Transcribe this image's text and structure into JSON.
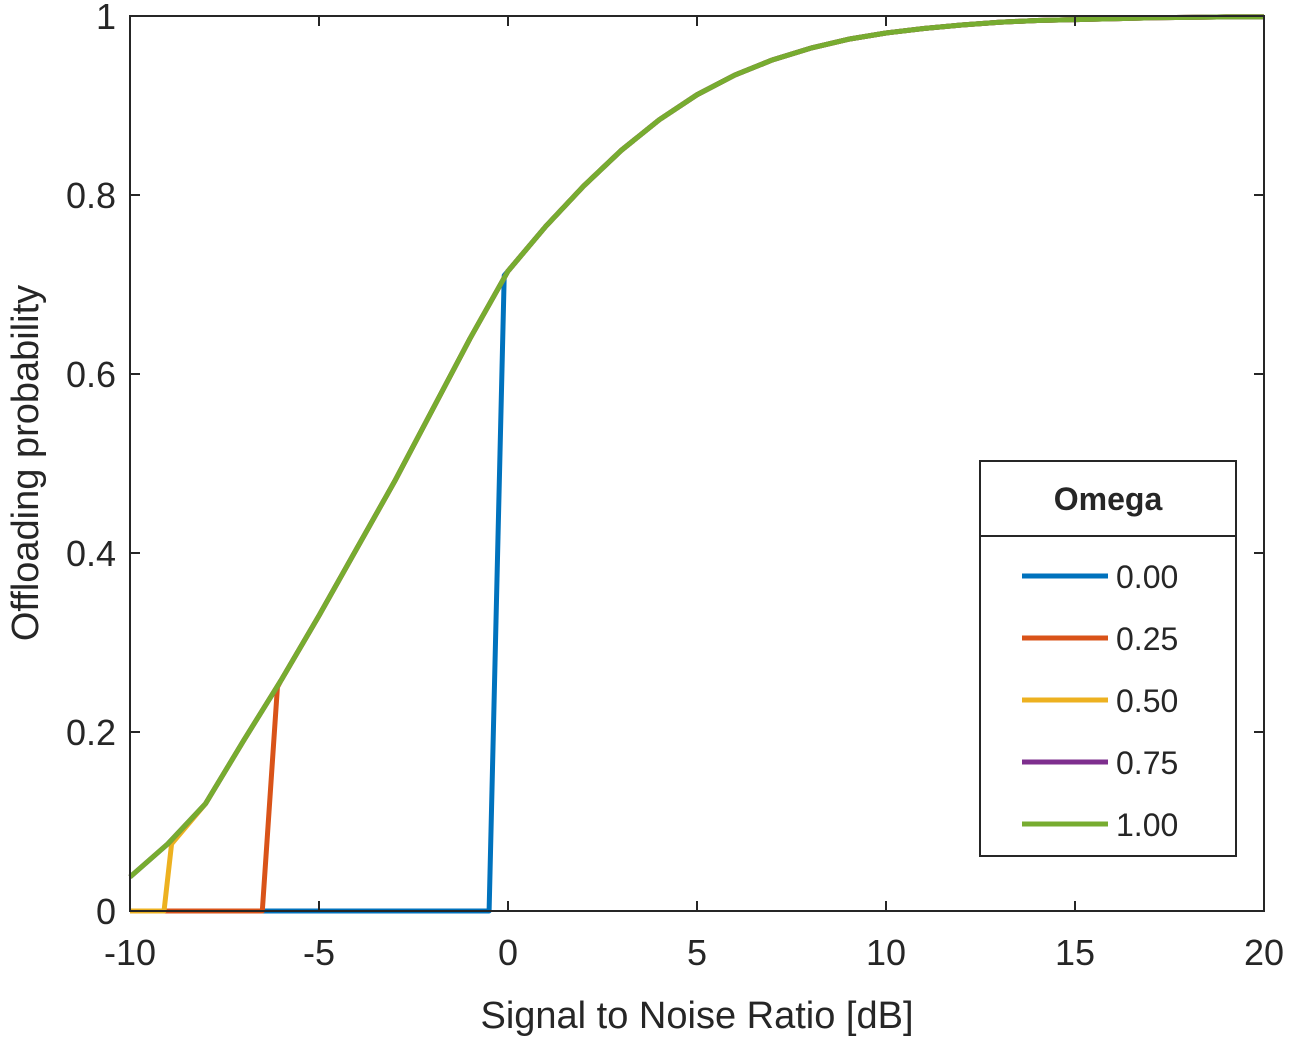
{
  "chart_data": {
    "type": "line",
    "title": "",
    "xlabel": "Signal to Noise Ratio [dB]",
    "ylabel": "Offloading probability",
    "xlim": [
      -10,
      20
    ],
    "ylim": [
      0,
      1
    ],
    "xticks": [
      -10,
      -5,
      0,
      5,
      10,
      15,
      20
    ],
    "yticks": [
      0,
      0.2,
      0.4,
      0.6,
      0.8,
      1
    ],
    "xtick_labels": [
      "-10",
      "-5",
      "0",
      "5",
      "10",
      "15",
      "20"
    ],
    "ytick_labels": [
      "0",
      "0.2",
      "0.4",
      "0.6",
      "0.8",
      "1"
    ],
    "grid": false,
    "legend": {
      "title": "Omega",
      "location": "right",
      "entries": [
        "0.00",
        "0.25",
        "0.50",
        "0.75",
        "1.00"
      ]
    },
    "series": [
      {
        "name": "0.00",
        "color": "#0072BD",
        "points": [
          [
            -10,
            0
          ],
          [
            -0.5,
            0
          ],
          [
            -0.1,
            0.71
          ],
          [
            0,
            0.715
          ],
          [
            1,
            0.765
          ],
          [
            2,
            0.81
          ],
          [
            3,
            0.85
          ],
          [
            4,
            0.884
          ],
          [
            5,
            0.912
          ],
          [
            6,
            0.934
          ],
          [
            7,
            0.951
          ],
          [
            8,
            0.964
          ],
          [
            9,
            0.974
          ],
          [
            10,
            0.981
          ],
          [
            11,
            0.986
          ],
          [
            12,
            0.99
          ],
          [
            13,
            0.993
          ],
          [
            14,
            0.995
          ],
          [
            15,
            0.996
          ],
          [
            16,
            0.997
          ],
          [
            17,
            0.998
          ],
          [
            18,
            0.9985
          ],
          [
            19,
            0.999
          ],
          [
            20,
            0.999
          ]
        ]
      },
      {
        "name": "0.25",
        "color": "#D95319",
        "points": [
          [
            -10,
            0
          ],
          [
            -6.5,
            0
          ],
          [
            -6.1,
            0.25
          ],
          [
            -6,
            0.258
          ],
          [
            -5,
            0.33
          ],
          [
            -4,
            0.405
          ],
          [
            -3,
            0.48
          ],
          [
            -2,
            0.56
          ],
          [
            -1,
            0.64
          ],
          [
            0,
            0.715
          ],
          [
            1,
            0.765
          ],
          [
            2,
            0.81
          ],
          [
            3,
            0.85
          ],
          [
            4,
            0.884
          ],
          [
            5,
            0.912
          ],
          [
            6,
            0.934
          ],
          [
            7,
            0.951
          ],
          [
            8,
            0.964
          ],
          [
            9,
            0.974
          ],
          [
            10,
            0.981
          ],
          [
            11,
            0.986
          ],
          [
            12,
            0.99
          ],
          [
            13,
            0.993
          ],
          [
            14,
            0.995
          ],
          [
            15,
            0.996
          ],
          [
            16,
            0.997
          ],
          [
            17,
            0.998
          ],
          [
            18,
            0.9985
          ],
          [
            19,
            0.999
          ],
          [
            20,
            0.999
          ]
        ]
      },
      {
        "name": "0.50",
        "color": "#EDB120",
        "points": [
          [
            -10,
            0
          ],
          [
            -9.1,
            0
          ],
          [
            -8.9,
            0.075
          ],
          [
            -8,
            0.12
          ],
          [
            -7,
            0.19
          ],
          [
            -6,
            0.258
          ],
          [
            -5,
            0.33
          ],
          [
            -4,
            0.405
          ],
          [
            -3,
            0.48
          ],
          [
            -2,
            0.56
          ],
          [
            -1,
            0.64
          ],
          [
            0,
            0.715
          ],
          [
            1,
            0.765
          ],
          [
            2,
            0.81
          ],
          [
            3,
            0.85
          ],
          [
            4,
            0.884
          ],
          [
            5,
            0.912
          ],
          [
            6,
            0.934
          ],
          [
            7,
            0.951
          ],
          [
            8,
            0.964
          ],
          [
            9,
            0.974
          ],
          [
            10,
            0.981
          ],
          [
            11,
            0.986
          ],
          [
            12,
            0.99
          ],
          [
            13,
            0.993
          ],
          [
            14,
            0.995
          ],
          [
            15,
            0.996
          ],
          [
            16,
            0.997
          ],
          [
            17,
            0.998
          ],
          [
            18,
            0.9985
          ],
          [
            19,
            0.999
          ],
          [
            20,
            0.999
          ]
        ]
      },
      {
        "name": "0.75",
        "color": "#7E2F8E",
        "points": [
          [
            -10,
            0.038
          ],
          [
            -9,
            0.075
          ],
          [
            -8,
            0.12
          ],
          [
            -7,
            0.19
          ],
          [
            -6,
            0.258
          ],
          [
            -5,
            0.33
          ],
          [
            -4,
            0.405
          ],
          [
            -3,
            0.48
          ],
          [
            -2,
            0.56
          ],
          [
            -1,
            0.64
          ],
          [
            0,
            0.715
          ],
          [
            1,
            0.765
          ],
          [
            2,
            0.81
          ],
          [
            3,
            0.85
          ],
          [
            4,
            0.884
          ],
          [
            5,
            0.912
          ],
          [
            6,
            0.934
          ],
          [
            7,
            0.951
          ],
          [
            8,
            0.964
          ],
          [
            9,
            0.974
          ],
          [
            10,
            0.981
          ],
          [
            11,
            0.986
          ],
          [
            12,
            0.99
          ],
          [
            13,
            0.993
          ],
          [
            14,
            0.995
          ],
          [
            15,
            0.996
          ],
          [
            16,
            0.997
          ],
          [
            17,
            0.998
          ],
          [
            18,
            0.9985
          ],
          [
            19,
            0.999
          ],
          [
            20,
            0.999
          ]
        ]
      },
      {
        "name": "1.00",
        "color": "#77AC30",
        "points": [
          [
            -10,
            0.038
          ],
          [
            -9,
            0.075
          ],
          [
            -8,
            0.12
          ],
          [
            -7,
            0.19
          ],
          [
            -6,
            0.258
          ],
          [
            -5,
            0.33
          ],
          [
            -4,
            0.405
          ],
          [
            -3,
            0.48
          ],
          [
            -2,
            0.56
          ],
          [
            -1,
            0.64
          ],
          [
            0,
            0.715
          ],
          [
            1,
            0.765
          ],
          [
            2,
            0.81
          ],
          [
            3,
            0.85
          ],
          [
            4,
            0.884
          ],
          [
            5,
            0.912
          ],
          [
            6,
            0.934
          ],
          [
            7,
            0.951
          ],
          [
            8,
            0.964
          ],
          [
            9,
            0.974
          ],
          [
            10,
            0.981
          ],
          [
            11,
            0.986
          ],
          [
            12,
            0.99
          ],
          [
            13,
            0.993
          ],
          [
            14,
            0.995
          ],
          [
            15,
            0.996
          ],
          [
            16,
            0.997
          ],
          [
            17,
            0.998
          ],
          [
            18,
            0.9985
          ],
          [
            19,
            0.999
          ],
          [
            20,
            0.999
          ]
        ]
      }
    ]
  }
}
